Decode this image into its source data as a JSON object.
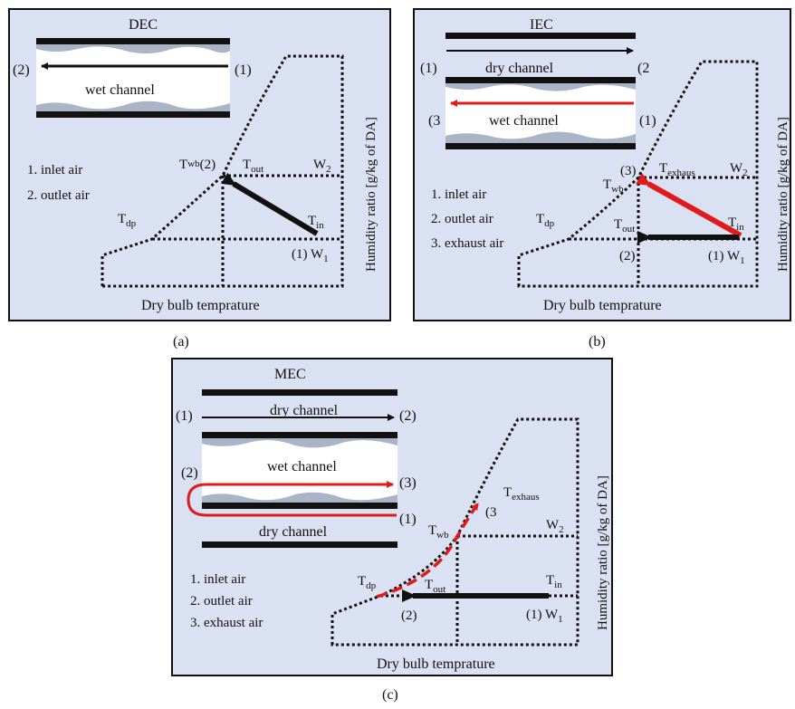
{
  "colors": {
    "panel_bg": "#d9e1f2",
    "arrow_red": "#e11b1b",
    "wave": "#a9b4c6"
  },
  "panel_a": {
    "caption": "(a)",
    "title": "DEC",
    "channel": "wet channel",
    "p_left": "(2)",
    "p_right": "(1)",
    "legend": [
      "1. inlet air",
      "2. outlet air"
    ],
    "twb": "T",
    "twb_sub": "wb",
    "pt2": "(2)",
    "tout": "T",
    "tout_sub": "out",
    "w2": "W",
    "w2_sub": "2",
    "tdp": "T",
    "tdp_sub": "dp",
    "tin": "T",
    "tin_sub": "in",
    "w1_pre": "(1) W",
    "w1_sub": "1",
    "xlabel": "Dry bulb temprature",
    "ylabel": "Humidity ratio [g/kg of DA]"
  },
  "panel_b": {
    "caption": "(b)",
    "title": "IEC",
    "dry": "dry channel",
    "wet": "wet channel",
    "dry_left": "(1)",
    "dry_right": "(2",
    "wet_left": "(3",
    "wet_right": "(1)",
    "legend": [
      "1. inlet air",
      "2. outlet air",
      "3. exhaust air"
    ],
    "pt3": "(3)",
    "texh": "T",
    "texh_sub": "exhaus",
    "w2": "W",
    "w2_sub": "2",
    "twb": "T",
    "twb_sub": "wb",
    "tdp": "T",
    "tdp_sub": "dp",
    "tout": "T",
    "tout_sub": "out",
    "tin": "T",
    "tin_sub": "in",
    "pt2": "(2)",
    "w1_pre": "(1) W",
    "w1_sub": "1",
    "xlabel": "Dry bulb temprature",
    "ylabel": "Humidity ratio [g/kg of DA]"
  },
  "panel_c": {
    "caption": "(c)",
    "title": "MEC",
    "dry_top": "dry channel",
    "wet": "wet channel",
    "dry_bottom": "dry channel",
    "top_left": "(1)",
    "top_right": "(2)",
    "wet_left": "(2)",
    "wet_right": "(3)",
    "bottom_right": "(1)",
    "legend": [
      "1. inlet air",
      "2. outlet air",
      "3. exhaust air"
    ],
    "texh": "T",
    "texh_sub": "exhaus",
    "pt3": "(3",
    "twb": "T",
    "twb_sub": "wb",
    "w2": "W",
    "w2_sub": "2",
    "tdp": "T",
    "tdp_sub": "dp",
    "tout": "T",
    "tout_sub": "out",
    "tin": "T",
    "tin_sub": "in",
    "pt2": "(2)",
    "w1_pre": "(1) W",
    "w1_sub": "1",
    "xlabel": "Dry bulb temprature",
    "ylabel": "Humidity ratio [g/kg of DA]"
  }
}
